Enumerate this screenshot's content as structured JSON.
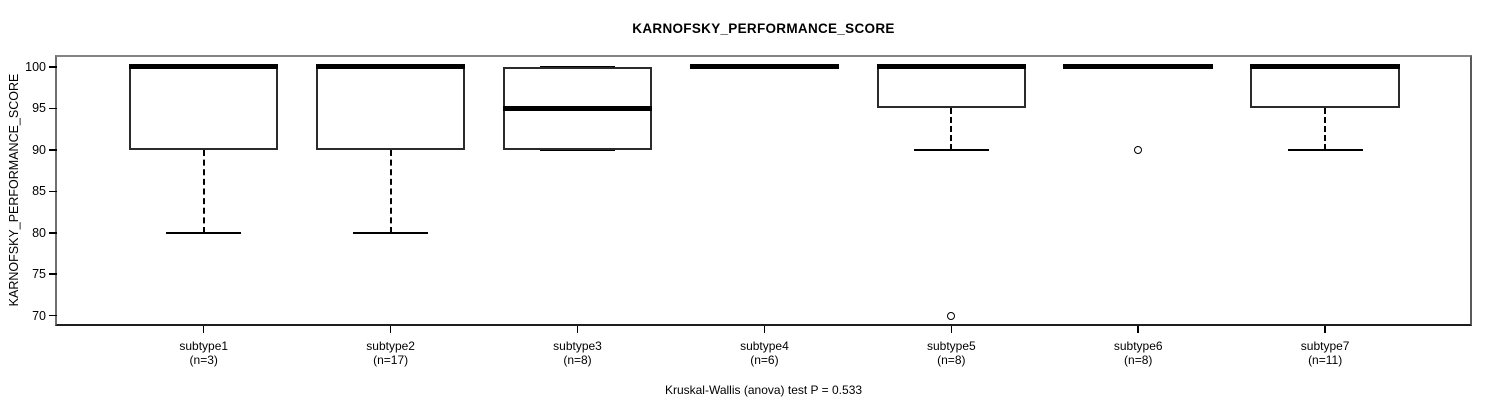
{
  "chart_data": {
    "type": "boxplot",
    "title": "KARNOFSKY_PERFORMANCE_SCORE",
    "ylabel": "KARNOFSKY_PERFORMANCE_SCORE",
    "caption": "Kruskal-Wallis (anova) test P = 0.533",
    "yticks": [
      70,
      75,
      80,
      85,
      90,
      95,
      100
    ],
    "ylim": [
      69.0,
      101.2
    ],
    "xlim": [
      0.215,
      7.775
    ],
    "box_width": 0.8,
    "cap_width": 0.4,
    "grid": false,
    "legend": "none",
    "groups": [
      {
        "label": "subtype1",
        "n_label": "(n=3)",
        "n": 3,
        "whisker_low": 80,
        "q1": 90,
        "median": 100,
        "q3": 100,
        "whisker_high": 100,
        "outliers": []
      },
      {
        "label": "subtype2",
        "n_label": "(n=17)",
        "n": 17,
        "whisker_low": 80,
        "q1": 90,
        "median": 100,
        "q3": 100,
        "whisker_high": 100,
        "outliers": []
      },
      {
        "label": "subtype3",
        "n_label": "(n=8)",
        "n": 8,
        "whisker_low": 90,
        "q1": 90,
        "median": 95,
        "q3": 100,
        "whisker_high": 100,
        "outliers": []
      },
      {
        "label": "subtype4",
        "n_label": "(n=6)",
        "n": 6,
        "whisker_low": 100,
        "q1": 100,
        "median": 100,
        "q3": 100,
        "whisker_high": 100,
        "outliers": []
      },
      {
        "label": "subtype5",
        "n_label": "(n=8)",
        "n": 8,
        "whisker_low": 90,
        "q1": 95,
        "median": 100,
        "q3": 100,
        "whisker_high": 100,
        "outliers": [
          70
        ]
      },
      {
        "label": "subtype6",
        "n_label": "(n=8)",
        "n": 8,
        "whisker_low": 100,
        "q1": 100,
        "median": 100,
        "q3": 100,
        "whisker_high": 100,
        "outliers": [
          90
        ]
      },
      {
        "label": "subtype7",
        "n_label": "(n=11)",
        "n": 11,
        "whisker_low": 90,
        "q1": 95,
        "median": 100,
        "q3": 100,
        "whisker_high": 100,
        "outliers": []
      }
    ]
  },
  "colors": {
    "line": "#000000",
    "box_border": "#2b2b2b",
    "background": "#ffffff"
  }
}
